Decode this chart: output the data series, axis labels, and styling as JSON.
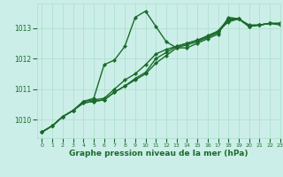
{
  "xlabel": "Graphe pression niveau de la mer (hPa)",
  "xlim": [
    -0.5,
    23
  ],
  "ylim": [
    1009.4,
    1013.8
  ],
  "yticks": [
    1010,
    1011,
    1012,
    1013
  ],
  "xticks": [
    0,
    1,
    2,
    3,
    4,
    5,
    6,
    7,
    8,
    9,
    10,
    11,
    12,
    13,
    14,
    15,
    16,
    17,
    18,
    19,
    20,
    21,
    22,
    23
  ],
  "bg_color": "#cceee8",
  "grid_color": "#aaddcc",
  "line_color": "#1a6b2a",
  "marker": "D",
  "markersize": 2.2,
  "linewidth": 1.0,
  "series": [
    {
      "x": [
        0,
        1,
        2,
        3,
        4,
        5,
        6,
        7,
        8,
        9,
        10,
        11,
        12,
        13,
        14,
        15,
        16,
        17,
        18,
        19,
        20,
        21,
        22,
        23
      ],
      "y": [
        1009.6,
        1009.8,
        1010.1,
        1010.3,
        1010.6,
        1010.7,
        1011.8,
        1011.95,
        1012.4,
        1013.35,
        1013.55,
        1013.05,
        1012.55,
        1012.35,
        1012.35,
        1012.5,
        1012.65,
        1012.8,
        1013.35,
        1013.3,
        1013.05,
        1013.1,
        1013.15,
        1013.1
      ]
    },
    {
      "x": [
        0,
        1,
        2,
        3,
        4,
        5,
        6,
        7,
        8,
        9,
        10,
        11,
        12,
        13,
        14,
        15,
        16,
        17,
        18,
        19,
        20,
        21,
        22,
        23
      ],
      "y": [
        1009.6,
        1009.8,
        1010.1,
        1010.3,
        1010.6,
        1010.65,
        1010.7,
        1011.0,
        1011.3,
        1011.5,
        1011.8,
        1012.15,
        1012.3,
        1012.4,
        1012.5,
        1012.6,
        1012.75,
        1012.9,
        1013.3,
        1013.3,
        1013.1,
        1013.1,
        1013.15,
        1013.15
      ]
    },
    {
      "x": [
        0,
        1,
        2,
        3,
        4,
        5,
        6,
        7,
        8,
        9,
        10,
        11,
        12,
        13,
        14,
        15,
        16,
        17,
        18,
        19,
        20,
        21,
        22,
        23
      ],
      "y": [
        1009.6,
        1009.8,
        1010.1,
        1010.3,
        1010.55,
        1010.6,
        1010.65,
        1010.9,
        1011.1,
        1011.3,
        1011.5,
        1011.85,
        1012.1,
        1012.35,
        1012.45,
        1012.55,
        1012.7,
        1012.85,
        1013.25,
        1013.3,
        1013.05,
        1013.1,
        1013.15,
        1013.15
      ]
    },
    {
      "x": [
        0,
        1,
        2,
        3,
        4,
        5,
        6,
        7,
        8,
        9,
        10,
        11,
        12,
        13,
        14,
        15,
        16,
        17,
        18,
        19,
        20,
        21,
        22,
        23
      ],
      "y": [
        1009.6,
        1009.8,
        1010.1,
        1010.3,
        1010.55,
        1010.6,
        1010.65,
        1010.9,
        1011.1,
        1011.35,
        1011.55,
        1012.0,
        1012.2,
        1012.4,
        1012.5,
        1012.6,
        1012.7,
        1012.9,
        1013.2,
        1013.3,
        1013.05,
        1013.1,
        1013.15,
        1013.15
      ]
    }
  ]
}
